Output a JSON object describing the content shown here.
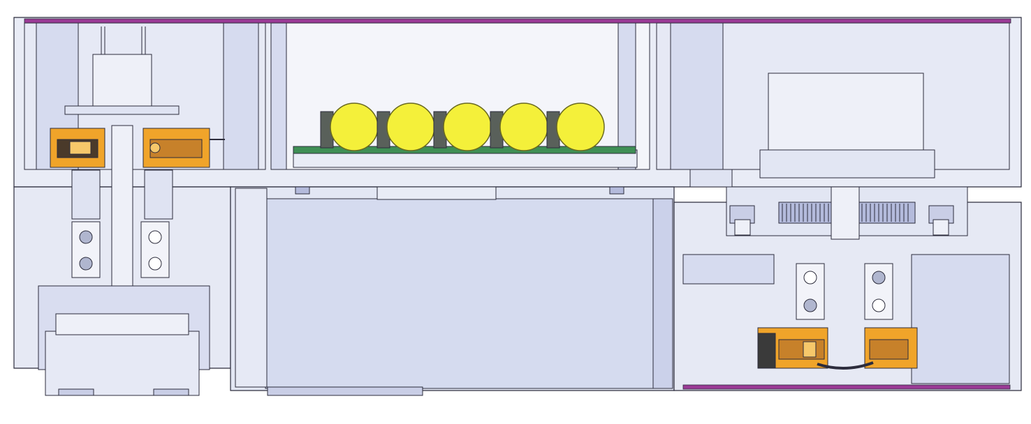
{
  "drawing": {
    "type": "cad-section-view",
    "text_labels": [],
    "colors": {
      "background": "#ffffff",
      "housing": "#e6e9f4",
      "housing_shade": "#c9cee6",
      "housing_dark": "#b4bbdc",
      "outline": "#2c2c3c",
      "cover_plate": "#9a3a95",
      "bearing_orange": "#f0a42a",
      "bearing_dark": "#4a3a2a",
      "capacitor_yellow": "#f4f03a",
      "capacitor_edge": "#6a6a20",
      "pcb_green": "#3f8f55"
    },
    "components": {
      "capacitors": {
        "count": 5
      },
      "bearing_assemblies": {
        "count": 2
      },
      "gear_stages": {
        "count": 1
      }
    }
  }
}
